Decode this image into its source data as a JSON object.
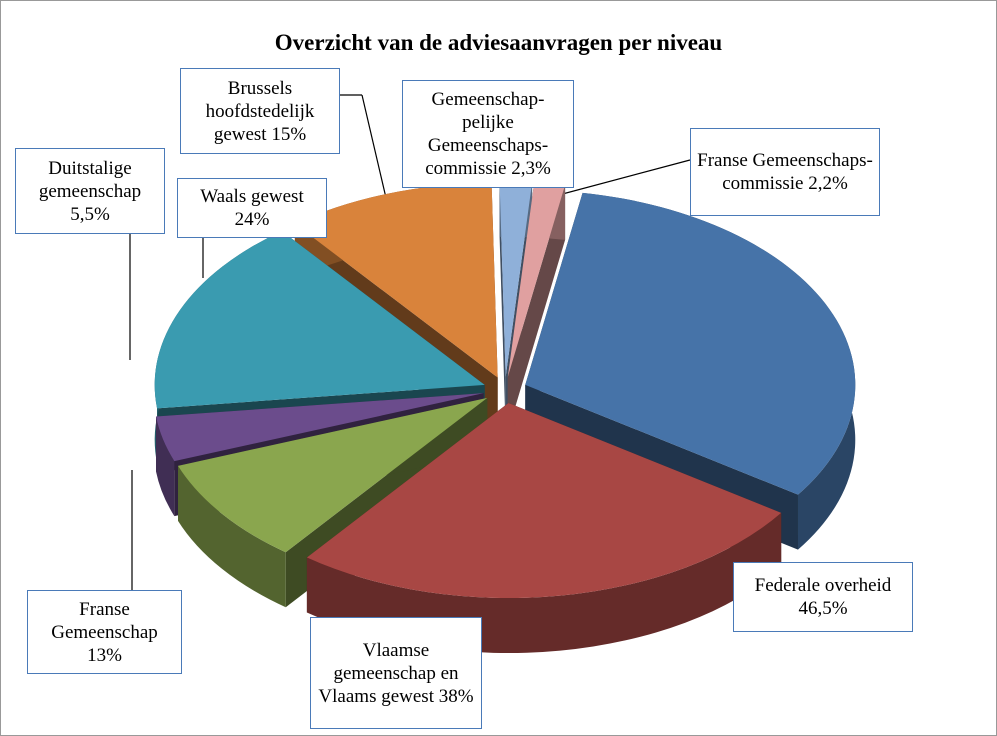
{
  "chart_data": {
    "type": "pie3d",
    "title": "Overzicht van de adviesaanvragen per niveau",
    "categories": [
      "Federale overheid",
      "Vlaamse gemeenschap en Vlaams gewest",
      "Franse Gemeenschap",
      "Duitstalige gemeenschap",
      "Waals gewest",
      "Brussels hoofdstedelijk gewest",
      "Gemeenschap-pelijke Gemeenschaps-commissie",
      "Franse Gemeenschaps-commissie"
    ],
    "values": [
      46.5,
      38,
      13,
      5.5,
      24,
      15,
      2.3,
      2.2
    ],
    "value_labels": [
      "46,5%",
      "38%",
      "13%",
      "5,5%",
      "24%",
      "15%",
      "2,3%",
      "2,2%"
    ],
    "colors": [
      "#4673a8",
      "#a84744",
      "#8aa64e",
      "#6b4c8c",
      "#3a9bb0",
      "#d9833b",
      "#8fb0d9",
      "#e0a0a0"
    ]
  }
}
